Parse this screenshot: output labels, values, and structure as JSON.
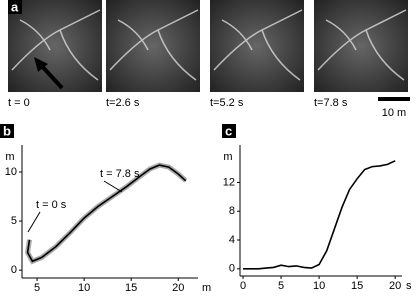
{
  "panel_a": {
    "label": "a",
    "frames": [
      "t = 0",
      "t=2.6 s",
      "t=5.2 s",
      "t=7.8 s"
    ],
    "scale_bar": "10 m"
  },
  "chart_data": [
    {
      "type": "line",
      "label": "b",
      "x_label": "m",
      "y_label": "m",
      "x": [
        4.2,
        4.0,
        4.5,
        5.5,
        7.0,
        8.5,
        10.0,
        11.5,
        13.0,
        14.5,
        16.0,
        17.0,
        18.0,
        19.0,
        20.0,
        20.8
      ],
      "values": [
        3.1,
        1.8,
        0.9,
        1.3,
        2.4,
        3.8,
        5.3,
        6.5,
        7.5,
        8.5,
        9.6,
        10.3,
        10.7,
        10.5,
        9.8,
        9.1
      ],
      "color": "#000000",
      "xlim": [
        3.4,
        22.1
      ],
      "ylim": [
        -0.8,
        12.75
      ],
      "xticks": [
        5,
        10,
        15,
        20
      ],
      "yticks": [
        0,
        5,
        10
      ],
      "annotations": [
        "t = 0 s",
        "t = 7.8 s"
      ]
    },
    {
      "type": "line",
      "label": "c",
      "x_label": "s",
      "y_label": "m",
      "x": [
        0,
        1,
        2,
        3,
        4,
        5,
        6,
        7,
        8,
        9,
        10,
        11,
        12,
        13,
        14,
        15,
        16,
        17,
        18,
        19,
        20
      ],
      "values": [
        0,
        0,
        0,
        0.1,
        0.2,
        0.5,
        0.3,
        0.4,
        0.2,
        0.1,
        0.6,
        2.5,
        5.5,
        8.5,
        11,
        12.5,
        13.8,
        14.2,
        14.3,
        14.5,
        15
      ],
      "color": "#000000",
      "xlim": [
        -0.4,
        20.9
      ],
      "ylim": [
        -1,
        17.2
      ],
      "xticks": [
        0,
        5,
        10,
        15,
        20
      ],
      "yticks": [
        0,
        4,
        8,
        12
      ]
    }
  ]
}
